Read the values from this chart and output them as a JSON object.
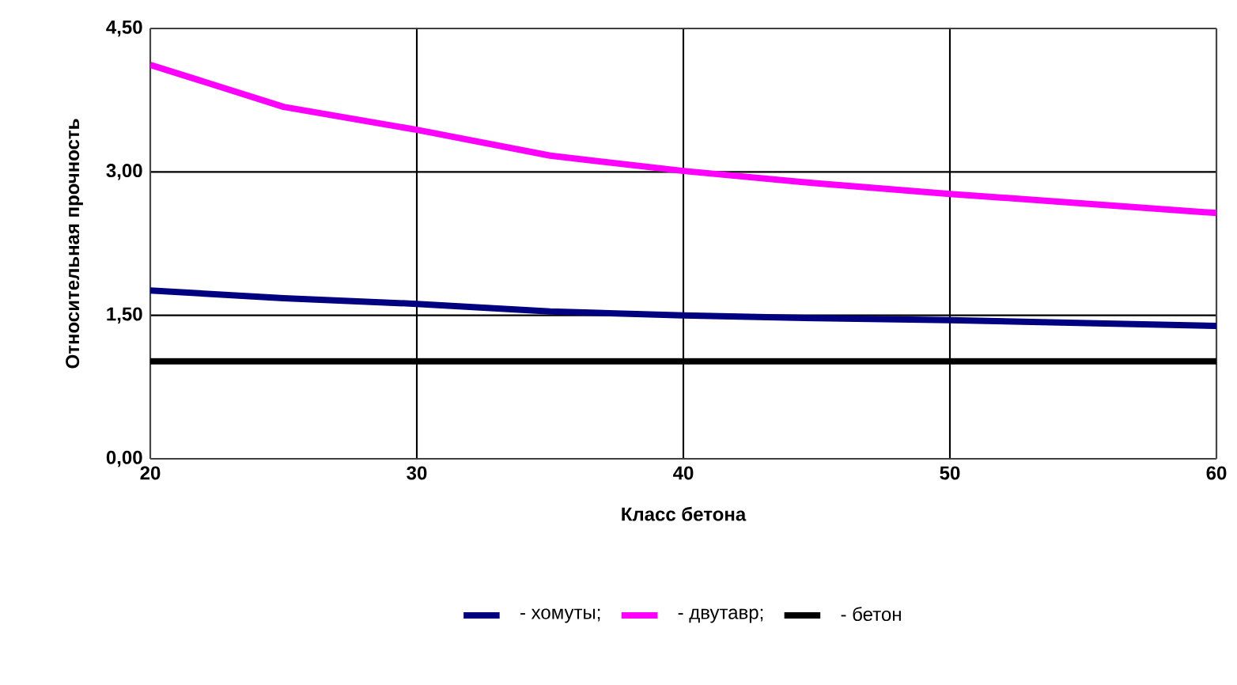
{
  "chart_data": {
    "type": "line",
    "xlabel": "Класс бетона",
    "ylabel": "Относительная прочность",
    "x": [
      20,
      25,
      30,
      35,
      40,
      45,
      50,
      55,
      60
    ],
    "series": [
      {
        "name": "- хомуты;",
        "color": "#000080",
        "values": [
          1.76,
          1.68,
          1.62,
          1.54,
          1.5,
          1.47,
          1.45,
          1.42,
          1.39
        ]
      },
      {
        "name": "- двутавр;",
        "color": "#ff00ff",
        "values": [
          4.12,
          3.68,
          3.44,
          3.17,
          3.01,
          2.88,
          2.77,
          2.67,
          2.57
        ]
      },
      {
        "name": "- бетон",
        "color": "#000000",
        "values": [
          1.02,
          1.02,
          1.02,
          1.02,
          1.02,
          1.02,
          1.02,
          1.02,
          1.02
        ]
      }
    ],
    "xlim": [
      20,
      60
    ],
    "ylim": [
      0,
      4.5
    ],
    "xticks": [
      20,
      30,
      40,
      50,
      60
    ],
    "yticks": [
      {
        "value": 0,
        "label": "0,00"
      },
      {
        "value": 1.5,
        "label": "1,50"
      },
      {
        "value": 3,
        "label": "3,00"
      },
      {
        "value": 4.5,
        "label": "4,50"
      }
    ],
    "grid": true,
    "legend": "bottom"
  }
}
